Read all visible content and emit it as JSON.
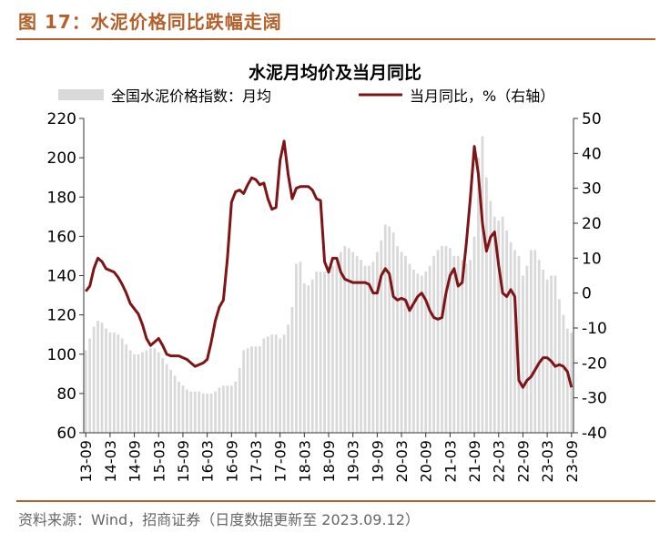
{
  "figure": {
    "title": "图 17：水泥价格同比跌幅走阔",
    "source": "资料来源：Wind，招商证券（日度数据更新至 2023.09.12）"
  },
  "colors": {
    "accent": "#b5602a",
    "bar": "#d9d9d9",
    "line": "#7f1416",
    "axis": "#333333"
  },
  "chart_data": {
    "type": "bar+line",
    "title": "水泥月均价及当月同比",
    "legend": [
      "全国水泥价格指数：月均",
      "当月同比，%（右轴）"
    ],
    "legend_position": "top",
    "grid": false,
    "y_left": {
      "ylim": [
        60,
        220
      ],
      "ticks": [
        60,
        80,
        100,
        120,
        140,
        160,
        180,
        200,
        220
      ]
    },
    "y_right": {
      "ylim": [
        -40,
        50
      ],
      "ticks": [
        -40,
        -30,
        -20,
        -10,
        0,
        10,
        20,
        30,
        40,
        50
      ]
    },
    "x_ticks": [
      "13-09",
      "14-03",
      "14-09",
      "15-03",
      "15-09",
      "16-03",
      "16-09",
      "17-03",
      "17-09",
      "18-03",
      "18-09",
      "19-03",
      "19-09",
      "20-03",
      "20-09",
      "21-03",
      "21-09",
      "22-03",
      "22-09",
      "23-03",
      "23-09"
    ],
    "months": [
      "13-09",
      "13-10",
      "13-11",
      "13-12",
      "14-01",
      "14-02",
      "14-03",
      "14-04",
      "14-05",
      "14-06",
      "14-07",
      "14-08",
      "14-09",
      "14-10",
      "14-11",
      "14-12",
      "15-01",
      "15-02",
      "15-03",
      "15-04",
      "15-05",
      "15-06",
      "15-07",
      "15-08",
      "15-09",
      "15-10",
      "15-11",
      "15-12",
      "16-01",
      "16-02",
      "16-03",
      "16-04",
      "16-05",
      "16-06",
      "16-07",
      "16-08",
      "16-09",
      "16-10",
      "16-11",
      "16-12",
      "17-01",
      "17-02",
      "17-03",
      "17-04",
      "17-05",
      "17-06",
      "17-07",
      "17-08",
      "17-09",
      "17-10",
      "17-11",
      "17-12",
      "18-01",
      "18-02",
      "18-03",
      "18-04",
      "18-05",
      "18-06",
      "18-07",
      "18-08",
      "18-09",
      "18-10",
      "18-11",
      "18-12",
      "19-01",
      "19-02",
      "19-03",
      "19-04",
      "19-05",
      "19-06",
      "19-07",
      "19-08",
      "19-09",
      "19-10",
      "19-11",
      "19-12",
      "20-01",
      "20-02",
      "20-03",
      "20-04",
      "20-05",
      "20-06",
      "20-07",
      "20-08",
      "20-09",
      "20-10",
      "20-11",
      "20-12",
      "21-01",
      "21-02",
      "21-03",
      "21-04",
      "21-05",
      "21-06",
      "21-07",
      "21-08",
      "21-09",
      "21-10",
      "21-11",
      "21-12",
      "22-01",
      "22-02",
      "22-03",
      "22-04",
      "22-05",
      "22-06",
      "22-07",
      "22-08",
      "22-09",
      "22-10",
      "22-11",
      "22-12",
      "23-01",
      "23-02",
      "23-03",
      "23-04",
      "23-05",
      "23-06",
      "23-07",
      "23-08",
      "23-09"
    ],
    "series": [
      {
        "name": "全国水泥价格指数：月均",
        "type": "bar",
        "axis": "left",
        "values": [
          102,
          108,
          114,
          117,
          116,
          113,
          111,
          111,
          110,
          108,
          105,
          102,
          100,
          100,
          101,
          102,
          103,
          103,
          101,
          98,
          95,
          92,
          89,
          86,
          84,
          82,
          81,
          81,
          81,
          80,
          80,
          80,
          81,
          83,
          84,
          84,
          84,
          86,
          93,
          102,
          103,
          104,
          104,
          104,
          108,
          109,
          110,
          110,
          108,
          110,
          115,
          124,
          146,
          147,
          136,
          135,
          138,
          142,
          142,
          142,
          143,
          145,
          147,
          152,
          155,
          154,
          152,
          150,
          148,
          145,
          145,
          147,
          152,
          158,
          166,
          165,
          162,
          155,
          152,
          150,
          146,
          143,
          141,
          140,
          142,
          145,
          150,
          153,
          155,
          155,
          154,
          150,
          150,
          148,
          146,
          148,
          160,
          200,
          211,
          190,
          178,
          170,
          168,
          170,
          163,
          157,
          153,
          150,
          140,
          145,
          153,
          153,
          148,
          143,
          138,
          140,
          140,
          128,
          120,
          113,
          111
        ]
      },
      {
        "name": "当月同比，%（右轴）",
        "type": "line",
        "axis": "right",
        "values": [
          0.5,
          2,
          7,
          10,
          9,
          7,
          6.5,
          6,
          4.5,
          2.5,
          0,
          -3,
          -4.5,
          -6,
          -9,
          -13,
          -15,
          -14,
          -13,
          -15,
          -17.5,
          -18,
          -18,
          -18,
          -18.5,
          -19,
          -20,
          -21,
          -20.5,
          -20,
          -19,
          -14,
          -8,
          -4,
          -2,
          10,
          26,
          29,
          29.5,
          28.5,
          31,
          33,
          32.5,
          31,
          31.5,
          27,
          24,
          24.5,
          38,
          43.5,
          34,
          27,
          30,
          30.5,
          30.5,
          30.5,
          29.5,
          27,
          26.5,
          9,
          6,
          10,
          10,
          6,
          4,
          3.5,
          3,
          3,
          3,
          3,
          2.5,
          0,
          0,
          5,
          7,
          5.5,
          -1,
          -2,
          -1.5,
          -2,
          -5,
          -3,
          -1,
          0,
          -2,
          -5,
          -7,
          -7.5,
          -7,
          0,
          5,
          7,
          2,
          3,
          14,
          27,
          42,
          34,
          20,
          12,
          16,
          17.5,
          8,
          0,
          -1,
          1,
          -1,
          -25,
          -27,
          -25,
          -24,
          -22,
          -20,
          -18.5,
          -18.5,
          -19.5,
          -21,
          -20.5,
          -21,
          -22.5,
          -27
        ]
      }
    ]
  }
}
